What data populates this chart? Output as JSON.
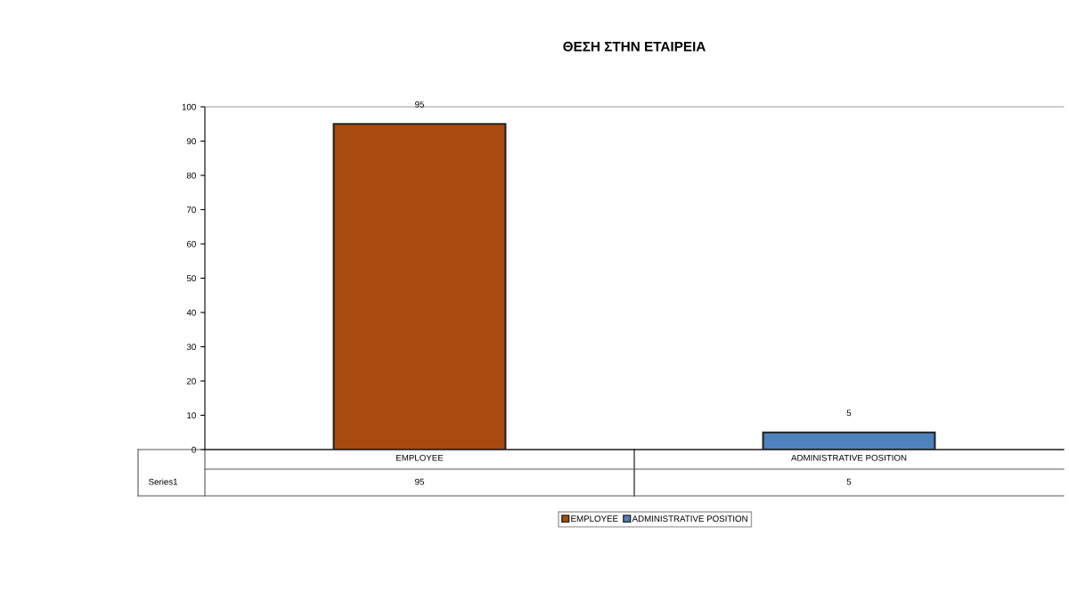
{
  "chart_data": {
    "type": "bar",
    "title": "ΘΕΣΗ ΣΤΗΝ ΕΤΑΙΡΕΙΑ",
    "categories": [
      "EMPLOYEE",
      "ADMINISTRATIVE POSITION"
    ],
    "series": [
      {
        "name": "Series1",
        "values": [
          95,
          5
        ],
        "value_labels": [
          "95",
          "5"
        ],
        "colors": [
          "#a84a10",
          "#4f81bd"
        ]
      }
    ],
    "ylim": [
      0,
      100
    ],
    "yticks": [
      0,
      10,
      20,
      30,
      40,
      50,
      60,
      70,
      80,
      90,
      100
    ],
    "annotations": [
      "95",
      "5"
    ],
    "legend": "bottom",
    "grid": false
  }
}
